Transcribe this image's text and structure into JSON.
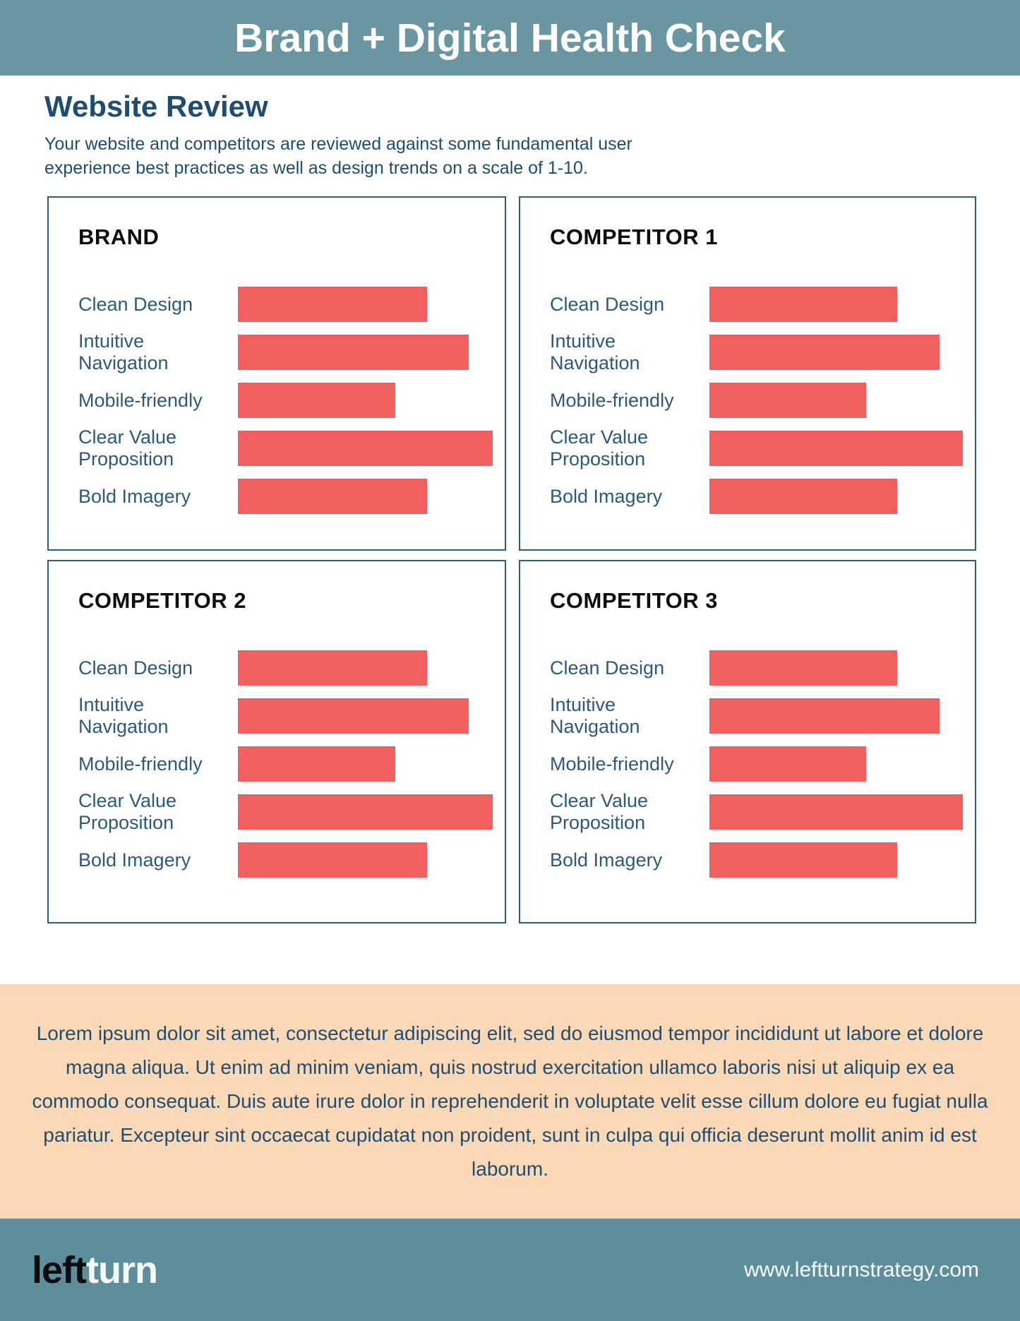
{
  "header": {
    "title": "Brand + Digital Health Check"
  },
  "intro": {
    "heading": "Website Review",
    "body": "Your website and competitors are reviewed against some fundamental user experience best practices as well as design trends on a scale of 1-10."
  },
  "chart_data": [
    {
      "type": "bar",
      "orientation": "horizontal",
      "title": "BRAND",
      "categories": [
        "Clean Design",
        "Intuitive Navigation",
        "Mobile-friendly",
        "Clear Value Proposition",
        "Bold Imagery"
      ],
      "values": [
        7.2,
        8.8,
        6.0,
        9.7,
        7.2
      ],
      "xlim": [
        0,
        10
      ],
      "bar_color": "#f25f5f",
      "grid": false,
      "value_labels_shown": false
    },
    {
      "type": "bar",
      "orientation": "horizontal",
      "title": "COMPETITOR 1",
      "categories": [
        "Clean Design",
        "Intuitive Navigation",
        "Mobile-friendly",
        "Clear Value Proposition",
        "Bold Imagery"
      ],
      "values": [
        7.2,
        8.8,
        6.0,
        9.7,
        7.2
      ],
      "xlim": [
        0,
        10
      ],
      "bar_color": "#f25f5f",
      "grid": false,
      "value_labels_shown": false
    },
    {
      "type": "bar",
      "orientation": "horizontal",
      "title": "COMPETITOR 2",
      "categories": [
        "Clean Design",
        "Intuitive Navigation",
        "Mobile-friendly",
        "Clear Value Proposition",
        "Bold Imagery"
      ],
      "values": [
        7.2,
        8.8,
        6.0,
        9.7,
        7.2
      ],
      "xlim": [
        0,
        10
      ],
      "bar_color": "#f25f5f",
      "grid": false,
      "value_labels_shown": false
    },
    {
      "type": "bar",
      "orientation": "horizontal",
      "title": "COMPETITOR 3",
      "categories": [
        "Clean Design",
        "Intuitive Navigation",
        "Mobile-friendly",
        "Clear Value Proposition",
        "Bold Imagery"
      ],
      "values": [
        7.2,
        8.8,
        6.0,
        9.7,
        7.2
      ],
      "xlim": [
        0,
        10
      ],
      "bar_color": "#f25f5f",
      "grid": false,
      "value_labels_shown": false
    }
  ],
  "callout": {
    "text": "Lorem ipsum dolor sit amet, consectetur adipiscing elit, sed do eiusmod tempor incididunt ut labore et dolore magna aliqua. Ut enim ad minim veniam, quis nostrud exercitation ullamco laboris nisi ut aliquip ex ea commodo consequat. Duis aute irure dolor in reprehenderit in voluptate velit esse cillum dolore eu fugiat nulla pariatur. Excepteur sint occaecat cupidatat non proident, sunt in culpa qui officia deserunt mollit anim id est laborum."
  },
  "footer": {
    "logo_black": "left",
    "logo_white": "turn",
    "url": "www.leftturnstrategy.com"
  },
  "colors": {
    "header_teal": "#6a96a1",
    "footer_teal": "#5d8e9b",
    "bar_coral": "#f25f5f",
    "callout_peach": "#fcd9b6",
    "heading_navy": "#1e4d72",
    "label_blue": "#2b5a7d",
    "panel_border": "#2e5e7e",
    "panel_title_black": "#0d0d0d"
  }
}
